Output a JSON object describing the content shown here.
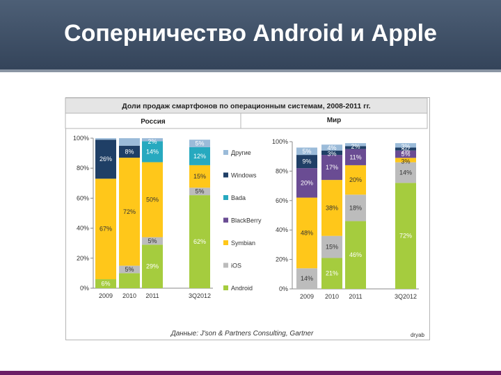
{
  "slide": {
    "title": "Соперничество Android и Apple"
  },
  "table_header": {
    "title": "Доли продаж смартфонов по операционным системам, 2008-2011 гг.",
    "left_region": "Россия",
    "right_region": "Мир"
  },
  "source": "Данные: J'son & Partners Consulting, Gartner",
  "watermark": "dryab",
  "colors": {
    "Другие": "#9bbbd9",
    "Windows": "#1f3f66",
    "Bada": "#27a9bf",
    "BlackBerry": "#6a4c93",
    "Symbian": "#ffc71a",
    "iOS": "#bcbcbc",
    "Android": "#a5cc3e"
  },
  "chart_data": [
    {
      "type": "bar",
      "stacked": true,
      "region": "Россия",
      "categories": [
        "2009",
        "2010",
        "2011",
        "3Q2012"
      ],
      "yticks": [
        "0%",
        "20%",
        "40%",
        "60%",
        "80%",
        "100%"
      ],
      "ylim": [
        0,
        100
      ],
      "legend": [
        "Другие",
        "Windows",
        "Bada",
        "BlackBerry",
        "Symbian",
        "iOS",
        "Android"
      ],
      "legend_position": "between-charts",
      "bars": [
        [
          {
            "series": "Android",
            "value": 6,
            "label": "6%"
          },
          {
            "series": "Symbian",
            "value": 67,
            "label": "67%"
          },
          {
            "series": "Windows",
            "value": 26,
            "label": "26%"
          },
          {
            "series": "Другие",
            "value": 1,
            "label": ""
          }
        ],
        [
          {
            "series": "Android",
            "value": 10,
            "label": ""
          },
          {
            "series": "iOS",
            "value": 5,
            "label": "5%"
          },
          {
            "series": "Symbian",
            "value": 72,
            "label": "72%"
          },
          {
            "series": "Windows",
            "value": 8,
            "label": "8%"
          },
          {
            "series": "Другие",
            "value": 5,
            "label": ""
          }
        ],
        [
          {
            "series": "Android",
            "value": 29,
            "label": "29%"
          },
          {
            "series": "iOS",
            "value": 5,
            "label": "5%"
          },
          {
            "series": "Symbian",
            "value": 50,
            "label": "50%"
          },
          {
            "series": "Bada",
            "value": 14,
            "label": "14%"
          },
          {
            "series": "Другие",
            "value": 2,
            "label": "2%"
          }
        ],
        [
          {
            "series": "Android",
            "value": 62,
            "label": "62%"
          },
          {
            "series": "iOS",
            "value": 5,
            "label": "5%"
          },
          {
            "series": "Symbian",
            "value": 15,
            "label": "15%"
          },
          {
            "series": "Bada",
            "value": 12,
            "label": "12%"
          },
          {
            "series": "Другие",
            "value": 5,
            "label": "5%"
          }
        ]
      ]
    },
    {
      "type": "bar",
      "stacked": true,
      "region": "Мир",
      "categories": [
        "2009",
        "2010",
        "2011",
        "3Q2012"
      ],
      "yticks": [
        "0%",
        "20%",
        "40%",
        "60%",
        "80%",
        "100%"
      ],
      "ylim": [
        0,
        100
      ],
      "bars": [
        [
          {
            "series": "iOS",
            "value": 14,
            "label": "14%"
          },
          {
            "series": "Symbian",
            "value": 48,
            "label": "48%"
          },
          {
            "series": "BlackBerry",
            "value": 20,
            "label": "20%"
          },
          {
            "series": "Windows",
            "value": 9,
            "label": "9%"
          },
          {
            "series": "Другие",
            "value": 5,
            "label": "5%"
          }
        ],
        [
          {
            "series": "Android",
            "value": 21,
            "label": "21%"
          },
          {
            "series": "iOS",
            "value": 15,
            "label": "15%"
          },
          {
            "series": "Symbian",
            "value": 38,
            "label": "38%"
          },
          {
            "series": "BlackBerry",
            "value": 17,
            "label": "17%"
          },
          {
            "series": "Windows",
            "value": 3,
            "label": "3%"
          },
          {
            "series": "Другие",
            "value": 4,
            "label": "4%"
          }
        ],
        [
          {
            "series": "Android",
            "value": 46,
            "label": "46%"
          },
          {
            "series": "iOS",
            "value": 18,
            "label": "18%"
          },
          {
            "series": "Symbian",
            "value": 20,
            "label": "20%"
          },
          {
            "series": "BlackBerry",
            "value": 11,
            "label": "11%"
          },
          {
            "series": "Windows",
            "value": 2,
            "label": ""
          },
          {
            "series": "Другие",
            "value": 2,
            "label": "2%"
          }
        ],
        [
          {
            "series": "Android",
            "value": 72,
            "label": "72%"
          },
          {
            "series": "iOS",
            "value": 14,
            "label": "14%"
          },
          {
            "series": "Symbian",
            "value": 3,
            "label": "3%"
          },
          {
            "series": "BlackBerry",
            "value": 5,
            "label": "5%"
          },
          {
            "series": "Windows",
            "value": 2,
            "label": "2%"
          },
          {
            "series": "Другие",
            "value": 3,
            "label": "3%"
          }
        ]
      ]
    }
  ]
}
